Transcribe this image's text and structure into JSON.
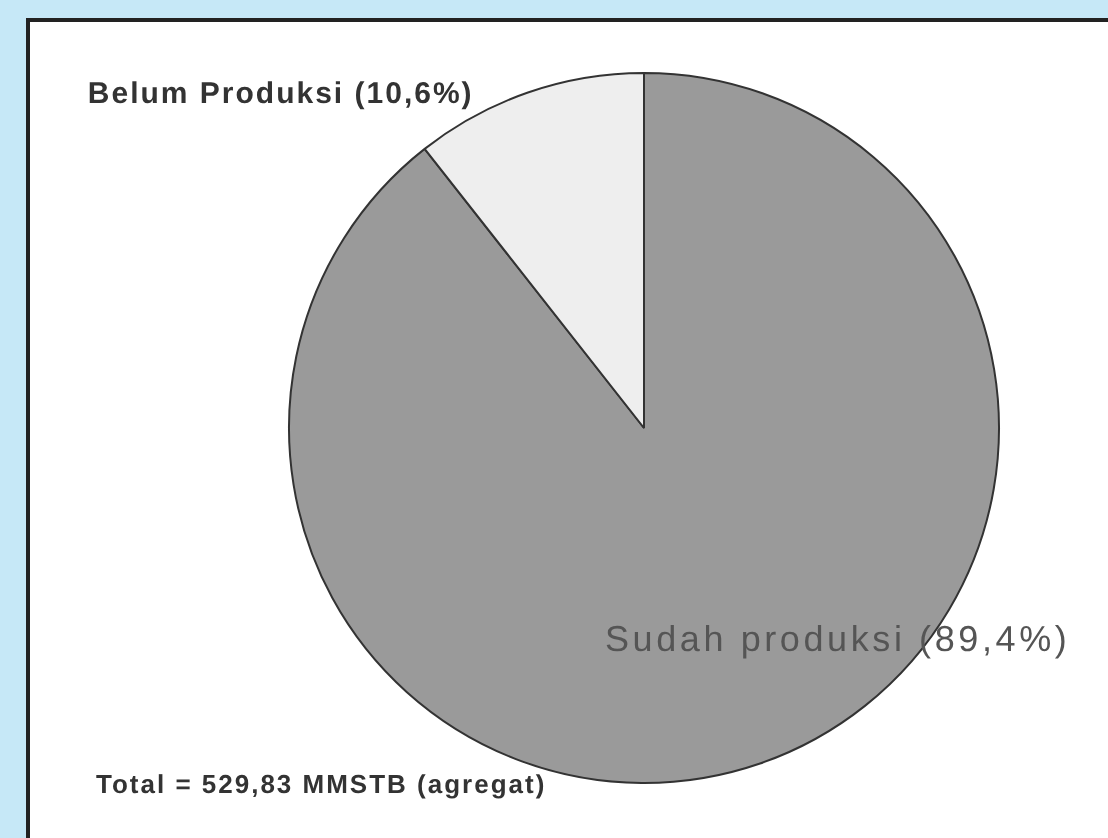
{
  "chart_data": {
    "type": "pie",
    "categories": [
      "Sudah produksi",
      "Belum Produksi"
    ],
    "values": [
      89.4,
      10.6
    ],
    "colors": [
      "#9a9a9a",
      "#eeeeee"
    ],
    "value_labels": [
      "(89,4%)",
      "(10,6%)"
    ],
    "annotations": [
      "Total = 529,83 MMSTB (agregat)"
    ]
  }
}
